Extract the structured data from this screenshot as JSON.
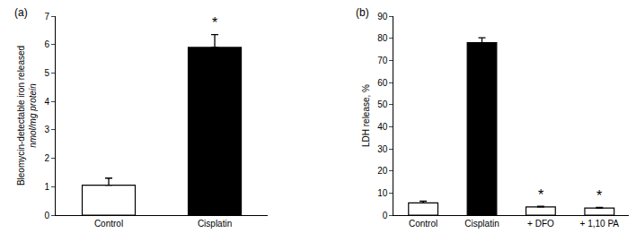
{
  "chart_data": [
    {
      "type": "bar",
      "title": "(a)",
      "ylabel": [
        "Bleomycin-detectable iron released",
        "nmol/mg protein"
      ],
      "categories": [
        "Control",
        "Cisplatin"
      ],
      "values": [
        1.05,
        5.9
      ],
      "errors": [
        0.25,
        0.45
      ],
      "colors": [
        "#ffffff",
        "#000000"
      ],
      "ylim": [
        0,
        7
      ],
      "yticks": [
        0,
        1,
        2,
        3,
        4,
        5,
        6,
        7
      ],
      "grid": false,
      "annotations": [
        {
          "category": "Cisplatin",
          "text": "*"
        }
      ]
    },
    {
      "type": "bar",
      "title": "(b)",
      "ylabel": [
        "LDH release, %"
      ],
      "categories": [
        "Control",
        "Cisplatin",
        "+ DFO",
        "+ 1,10 PA"
      ],
      "values": [
        5.5,
        78,
        3.7,
        3.2
      ],
      "errors": [
        0.8,
        2.2,
        0.3,
        0.3
      ],
      "colors": [
        "#ffffff",
        "#000000",
        "#ffffff",
        "#ffffff"
      ],
      "ylim": [
        0,
        90
      ],
      "yticks": [
        0,
        10,
        20,
        30,
        40,
        50,
        60,
        70,
        80,
        90
      ],
      "grid": false,
      "annotations": [
        {
          "category": "+ DFO",
          "text": "*"
        },
        {
          "category": "+ 1,10 PA",
          "text": "*"
        }
      ]
    }
  ]
}
